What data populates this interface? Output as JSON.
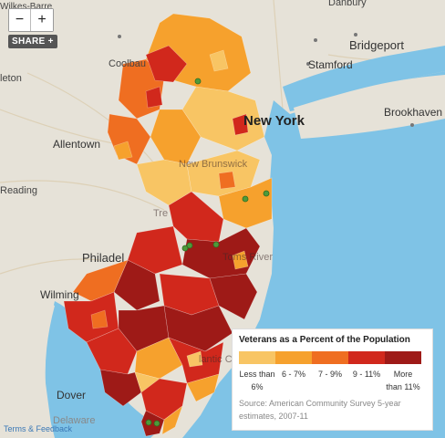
{
  "controls": {
    "zoom_in": "+",
    "zoom_out": "−",
    "share": "SHARE +"
  },
  "places": {
    "danbury": "Danbury",
    "coolbaugh": "Coolbau",
    "bridgeport": "Bridgeport",
    "stamford": "Stamford",
    "eleton": "leton",
    "wilkes": "Wilkes-Barre",
    "new_york": "New York",
    "brookhaven": "Brookhaven",
    "allentown": "Allentown",
    "new_brunswick": "New Brunswick",
    "reading": "Reading",
    "trenton": "Tre",
    "philadelphia": "Philadel",
    "toms_river": "Toms River",
    "wilmington": "Wilming",
    "atlantic_city": "lantic Ci",
    "dover": "Dover",
    "delaware": "Delaware"
  },
  "legend": {
    "title": "Veterans as a Percent of the Population",
    "bins": [
      {
        "label": "Less than 6%",
        "color": "#f8c564"
      },
      {
        "label": "6 - 7%",
        "color": "#f6a12d"
      },
      {
        "label": "7 - 9%",
        "color": "#ef6e21"
      },
      {
        "label": "9 - 11%",
        "color": "#d1281c"
      },
      {
        "label": "More than 11%",
        "color": "#9e1a17"
      }
    ],
    "source": "Source: American Community Survey 5-year estimates, 2007-11"
  },
  "footer": {
    "terms": "Terms & Feedback"
  },
  "colors": {
    "water": "#7fc3e6",
    "land": "#e6e2d8",
    "marker": "#4e9a3a"
  }
}
